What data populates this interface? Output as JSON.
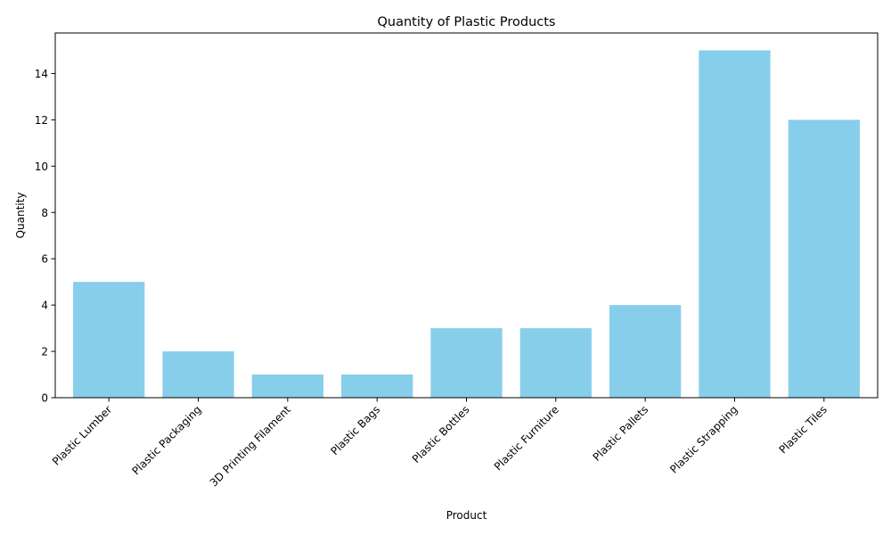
{
  "chart_data": {
    "type": "bar",
    "title": "Quantity of Plastic Products",
    "xlabel": "Product",
    "ylabel": "Quantity",
    "categories": [
      "Plastic Lumber",
      "Plastic Packaging",
      "3D Printing Filament",
      "Plastic Bags",
      "Plastic Bottles",
      "Plastic Furniture",
      "Plastic Pallets",
      "Plastic Strapping",
      "Plastic Tiles"
    ],
    "values": [
      5,
      2,
      1,
      1,
      3,
      3,
      4,
      15,
      12
    ],
    "ylim": [
      0,
      15.75
    ],
    "yticks": [
      0,
      2,
      4,
      6,
      8,
      10,
      12,
      14
    ],
    "bar_color": "#87ceeb",
    "grid": false,
    "x_tick_rotation": 45
  }
}
